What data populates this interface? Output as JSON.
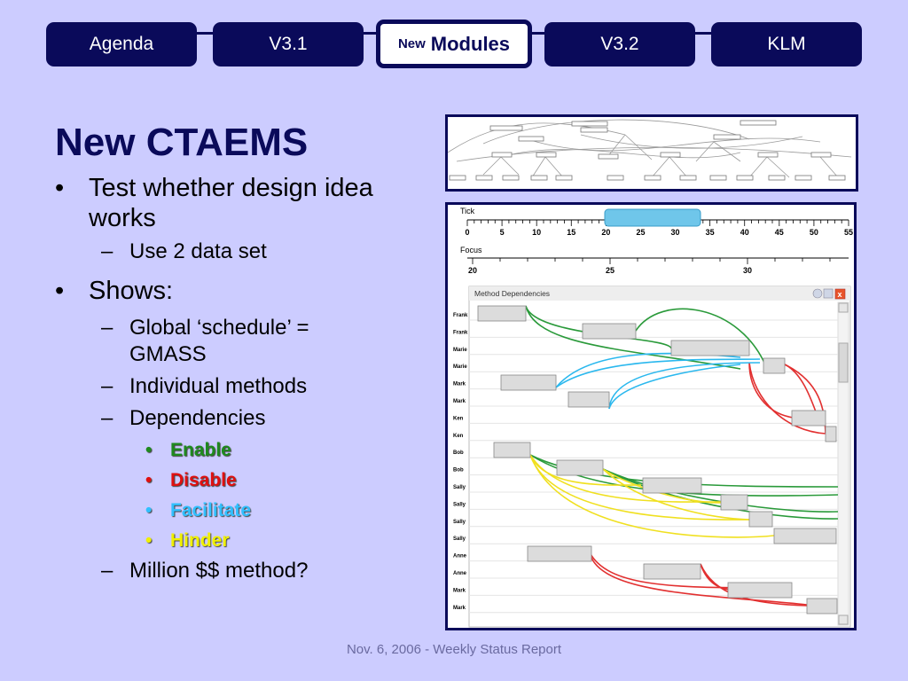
{
  "nav": {
    "tabs": [
      {
        "label": "Agenda"
      },
      {
        "label": "V3.1"
      },
      {
        "prefix": "New",
        "label": "Modules"
      },
      {
        "label": "V3.2"
      },
      {
        "label": "KLM"
      }
    ]
  },
  "slide": {
    "title": "New CTAEMS",
    "bullets": {
      "b1": "Test whether design idea works",
      "b1_sub1": "Use 2 data set",
      "b2": "Shows:",
      "b2_sub1": "Global ‘schedule’ = GMASS",
      "b2_sub2": "Individual methods",
      "b2_sub3": "Dependencies",
      "dep_enable": "Enable",
      "dep_disable": "Disable",
      "dep_facilitate": "Facilitate",
      "dep_hinder": "Hinder",
      "b2_sub4": "Million $$ method?"
    },
    "markers": {
      "l1": "•",
      "l2": "–",
      "l3": "•"
    }
  },
  "colors": {
    "navy": "#0a0a5a",
    "background": "#ccccff",
    "enable": "#1e8a1e",
    "disable": "#e01010",
    "facilitate": "#30c0ff",
    "hinder": "#f0f000"
  },
  "footer": "Nov. 6, 2006 - Weekly Status Report",
  "viz": {
    "tick_label": "Tick",
    "focus_label": "Focus",
    "tick_values": [
      "0",
      "5",
      "10",
      "15",
      "20",
      "25",
      "30",
      "35",
      "40",
      "45",
      "50",
      "55"
    ],
    "focus_values": [
      "20",
      "25",
      "30"
    ],
    "window_title": "Method Dependencies",
    "rows": [
      "Frank",
      "Frank",
      "Marie",
      "Marie",
      "Mark",
      "Mark",
      "Ken",
      "Ken",
      "Bob",
      "Bob",
      "Sally",
      "Sally",
      "Sally",
      "Sally",
      "Anne",
      "Anne",
      "Mark",
      "Mark"
    ]
  }
}
